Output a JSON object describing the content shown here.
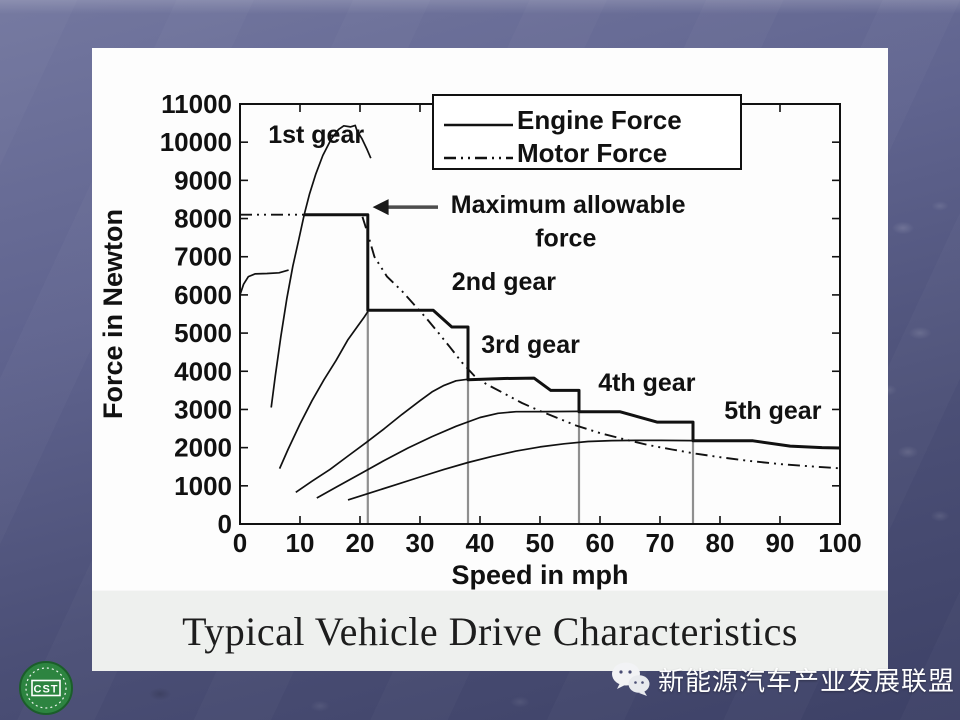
{
  "slide": {
    "title": "Typical Vehicle Drive Characteristics",
    "footer_text": "新能源汽车产业发展联盟",
    "logo_text": "CST"
  },
  "chart_data": {
    "type": "line",
    "xlabel": "Speed in mph",
    "ylabel": "Force in Newton",
    "xlim": [
      0,
      100
    ],
    "ylim": [
      0,
      11000
    ],
    "x_ticks": [
      0,
      10,
      20,
      30,
      40,
      50,
      60,
      70,
      80,
      90,
      100
    ],
    "y_ticks": [
      0,
      1000,
      2000,
      3000,
      4000,
      5000,
      6000,
      7000,
      8000,
      9000,
      10000,
      11000
    ],
    "grid": false,
    "legend_position": "top-center",
    "legend": [
      {
        "label": "Engine Force",
        "style": "solid"
      },
      {
        "label": "Motor Force",
        "style": "dash-dot"
      }
    ],
    "line_color": "#111111",
    "shift_line_color": "#8f8f8f",
    "max_allowable_force": 8100,
    "gear_shift_speeds": [
      21.3,
      38,
      56.5,
      75.5
    ],
    "series": [
      {
        "name": "shift-line-1",
        "style": "solid",
        "color": "#8f8f8f",
        "width": 2.2,
        "points": [
          [
            21.3,
            8100
          ],
          [
            21.3,
            0
          ]
        ]
      },
      {
        "name": "shift-line-2",
        "style": "solid",
        "color": "#8f8f8f",
        "width": 2.2,
        "points": [
          [
            38,
            5160
          ],
          [
            38,
            0
          ]
        ]
      },
      {
        "name": "shift-line-3",
        "style": "solid",
        "color": "#8f8f8f",
        "width": 2.2,
        "points": [
          [
            56.5,
            3500
          ],
          [
            56.5,
            0
          ]
        ]
      },
      {
        "name": "shift-line-4",
        "style": "solid",
        "color": "#8f8f8f",
        "width": 2.2,
        "points": [
          [
            75.5,
            2680
          ],
          [
            75.5,
            0
          ]
        ]
      },
      {
        "name": "gear1-launch",
        "style": "solid",
        "width": 1.7,
        "points": [
          [
            0,
            6000
          ],
          [
            0.6,
            6280
          ],
          [
            1.4,
            6480
          ],
          [
            2.5,
            6550
          ],
          [
            4.5,
            6560
          ],
          [
            6.5,
            6580
          ],
          [
            8.1,
            6650
          ]
        ]
      },
      {
        "name": "gear1-engine",
        "style": "solid",
        "width": 1.7,
        "points": [
          [
            5.2,
            3050
          ],
          [
            5.9,
            3900
          ],
          [
            6.8,
            4900
          ],
          [
            7.8,
            5900
          ],
          [
            8.8,
            6750
          ],
          [
            9.8,
            7450
          ],
          [
            10.7,
            8100
          ],
          [
            11.6,
            8650
          ],
          [
            12.6,
            9150
          ],
          [
            13.8,
            9650
          ],
          [
            15.2,
            10080
          ],
          [
            16.4,
            10330
          ],
          [
            17.3,
            10430
          ],
          [
            18.4,
            10400
          ],
          [
            19.2,
            10440
          ],
          [
            19.5,
            10300
          ],
          [
            20.3,
            10100
          ],
          [
            21.2,
            9800
          ],
          [
            21.8,
            9580
          ]
        ]
      },
      {
        "name": "gear2-engine",
        "style": "solid",
        "width": 1.7,
        "points": [
          [
            6.6,
            1450
          ],
          [
            8,
            1950
          ],
          [
            10,
            2620
          ],
          [
            12,
            3230
          ],
          [
            14,
            3780
          ],
          [
            16,
            4280
          ],
          [
            18,
            4830
          ],
          [
            19.6,
            5180
          ],
          [
            20.7,
            5420
          ],
          [
            21.3,
            5560
          ]
        ]
      },
      {
        "name": "gear3-engine",
        "style": "solid",
        "width": 1.7,
        "points": [
          [
            9.3,
            830
          ],
          [
            12,
            1120
          ],
          [
            15,
            1430
          ],
          [
            18,
            1780
          ],
          [
            21,
            2130
          ],
          [
            24,
            2490
          ],
          [
            27,
            2870
          ],
          [
            30,
            3230
          ],
          [
            32,
            3460
          ],
          [
            34,
            3630
          ],
          [
            36,
            3750
          ],
          [
            37.9,
            3790
          ]
        ]
      },
      {
        "name": "gear4-engine",
        "style": "solid",
        "width": 1.7,
        "points": [
          [
            12.8,
            680
          ],
          [
            16,
            960
          ],
          [
            20,
            1310
          ],
          [
            24,
            1660
          ],
          [
            28,
            1990
          ],
          [
            32,
            2290
          ],
          [
            36,
            2560
          ],
          [
            40,
            2790
          ],
          [
            43,
            2900
          ],
          [
            46,
            2940
          ],
          [
            51,
            2945
          ],
          [
            56.4,
            2950
          ]
        ]
      },
      {
        "name": "gear5-engine",
        "style": "solid",
        "width": 1.7,
        "points": [
          [
            18,
            630
          ],
          [
            22,
            830
          ],
          [
            26,
            1030
          ],
          [
            30,
            1230
          ],
          [
            34,
            1430
          ],
          [
            38,
            1610
          ],
          [
            42,
            1770
          ],
          [
            46,
            1910
          ],
          [
            50,
            2020
          ],
          [
            54,
            2100
          ],
          [
            58,
            2160
          ],
          [
            62,
            2185
          ],
          [
            66,
            2190
          ],
          [
            70,
            2190
          ],
          [
            75.4,
            2185
          ]
        ]
      },
      {
        "name": "motor-force",
        "style": "dash-dot",
        "width": 1.9,
        "points": [
          [
            0,
            8100
          ],
          [
            20.3,
            8100
          ],
          [
            21.2,
            7650
          ],
          [
            22.4,
            7000
          ],
          [
            24.5,
            6480
          ],
          [
            27,
            6100
          ],
          [
            29,
            5750
          ],
          [
            31,
            5400
          ],
          [
            33,
            5020
          ],
          [
            35,
            4630
          ],
          [
            37,
            4230
          ],
          [
            39,
            3890
          ],
          [
            41,
            3670
          ],
          [
            44,
            3420
          ],
          [
            47,
            3170
          ],
          [
            50,
            2960
          ],
          [
            53,
            2770
          ],
          [
            56,
            2580
          ],
          [
            60,
            2380
          ],
          [
            64,
            2220
          ],
          [
            68,
            2070
          ],
          [
            72,
            1950
          ],
          [
            76,
            1840
          ],
          [
            80,
            1750
          ],
          [
            85,
            1650
          ],
          [
            90,
            1570
          ],
          [
            95,
            1510
          ],
          [
            100,
            1460
          ]
        ]
      },
      {
        "name": "max-force-envelope",
        "style": "solid",
        "width": 3,
        "points": [
          [
            10.7,
            8100
          ],
          [
            21.3,
            8100
          ],
          [
            21.3,
            5600
          ],
          [
            32.2,
            5600
          ],
          [
            35.3,
            5160
          ],
          [
            38,
            5160
          ],
          [
            38,
            3780
          ],
          [
            44,
            3810
          ],
          [
            49,
            3820
          ],
          [
            51.8,
            3500
          ],
          [
            56.5,
            3500
          ],
          [
            56.5,
            2940
          ],
          [
            63.3,
            2940
          ],
          [
            69.5,
            2670
          ],
          [
            75.5,
            2670
          ],
          [
            75.5,
            2180
          ],
          [
            85.5,
            2180
          ],
          [
            91.7,
            2040
          ],
          [
            97,
            2000
          ],
          [
            100,
            1990
          ]
        ]
      }
    ],
    "annotations": [
      {
        "text": "1st gear",
        "x": 4.7,
        "y": 10210,
        "anchor": "start"
      },
      {
        "text": "2nd gear",
        "x": 35.3,
        "y": 6360,
        "anchor": "start"
      },
      {
        "text": "3rd gear",
        "x": 40.2,
        "y": 4710,
        "anchor": "start"
      },
      {
        "text": "4th gear",
        "x": 59.7,
        "y": 3720,
        "anchor": "start"
      },
      {
        "text": "5th gear",
        "x": 80.7,
        "y": 2980,
        "anchor": "start"
      },
      {
        "text": "Maximum allowable",
        "x": 54.7,
        "y": 8380,
        "anchor": "middle"
      },
      {
        "text": "force",
        "x": 54.3,
        "y": 7510,
        "anchor": "middle"
      }
    ],
    "arrow": {
      "x1": 33.0,
      "y1": 8300,
      "x2": 22.1,
      "y2": 8300
    }
  }
}
